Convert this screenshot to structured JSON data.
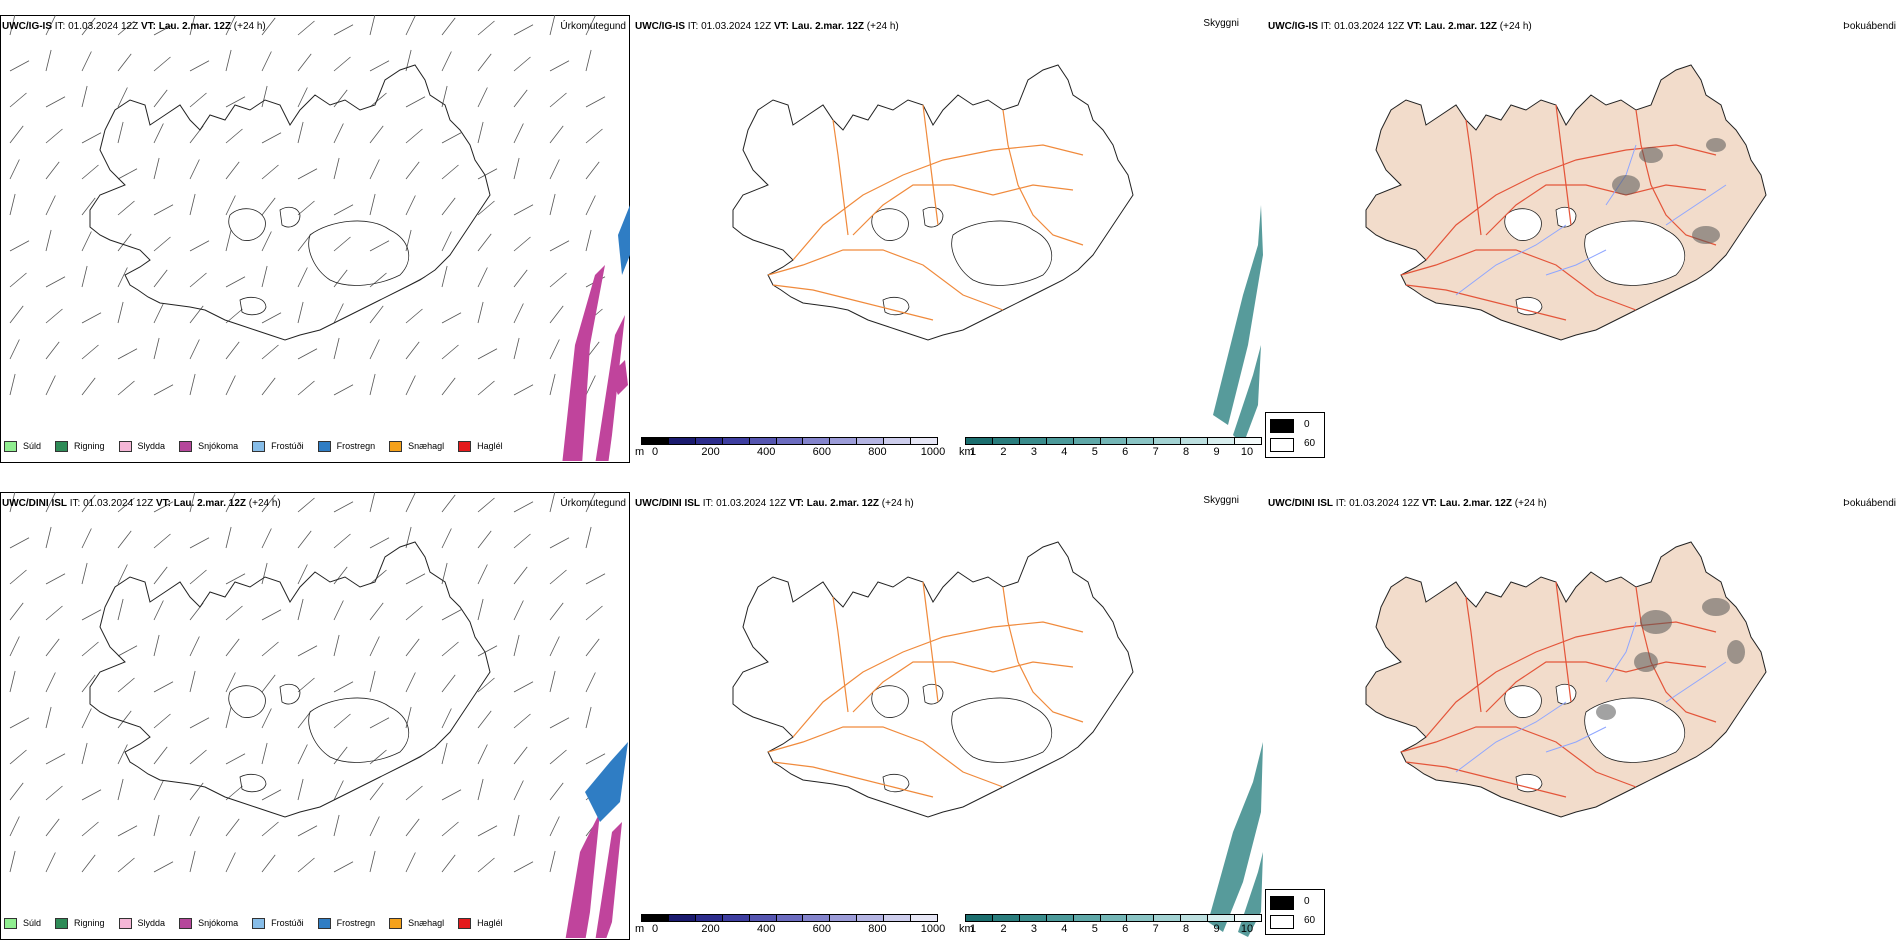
{
  "rows": [
    {
      "model": "UWC/IG-IS",
      "header_rest": " IT: 01.03.2024 12Z ",
      "vt_label": "VT:",
      "vt_value": " Lau. 2.mar. 12Z",
      "lead": " (+24 h)"
    },
    {
      "model": "UWC/DINI ISL",
      "header_rest": " IT: 01.03.2024 12Z ",
      "vt_label": "VT:",
      "vt_value": " Lau. 2.mar. 12Z",
      "lead": " (+24 h)"
    }
  ],
  "panel_titles": [
    "Úrkomutegund",
    "Skyggni",
    "Þokuábendi"
  ],
  "precip_legend": [
    {
      "label": "Súld",
      "color": "#90ee90"
    },
    {
      "label": "Rigning",
      "color": "#2e8b57"
    },
    {
      "label": "Slydda",
      "color": "#f4b6d6"
    },
    {
      "label": "Snjókoma",
      "color": "#b5479b"
    },
    {
      "label": "Frostúði",
      "color": "#87bde8"
    },
    {
      "label": "Frostregn",
      "color": "#2f7dc4"
    },
    {
      "label": "Snæhagl",
      "color": "#f4a11b"
    },
    {
      "label": "Haglél",
      "color": "#e41a1c"
    }
  ],
  "elevation_bar": {
    "unit": "m",
    "ticks": [
      "0",
      "200",
      "400",
      "600",
      "800",
      "1000"
    ],
    "colors": [
      "#000000",
      "#1a1a6e",
      "#2c2c8c",
      "#3e3ea0",
      "#5555b0",
      "#6c6cc0",
      "#8484cc",
      "#9c9cd8",
      "#b4b4e2",
      "#cdcdec",
      "#e6e6f5"
    ]
  },
  "visibility_bar": {
    "unit": "km",
    "ticks": [
      "1",
      "2",
      "3",
      "4",
      "5",
      "6",
      "7",
      "8",
      "9",
      "10"
    ],
    "colors": [
      "#1b6e6e",
      "#2a7d7d",
      "#3a8c8c",
      "#4c9a9a",
      "#5fa8a8",
      "#74b6b6",
      "#8ac4c4",
      "#a2d2d2",
      "#bcdfdf",
      "#d8eeee",
      "#f4fbfb"
    ]
  },
  "cloud_legend": {
    "items": [
      {
        "label": "0",
        "color": "#000000"
      },
      {
        "label": "60",
        "color": "#ffffff"
      }
    ]
  },
  "colors": {
    "coast": "#222222",
    "roads_orange": "#f08a3c",
    "roads_red": "#e4553a",
    "land_fill": "#f2dccb",
    "rivers": "#8fa6ff",
    "snow": "#c0449c",
    "freezing": "#2f7dc4",
    "vis_teal": "#1f7a7a"
  }
}
